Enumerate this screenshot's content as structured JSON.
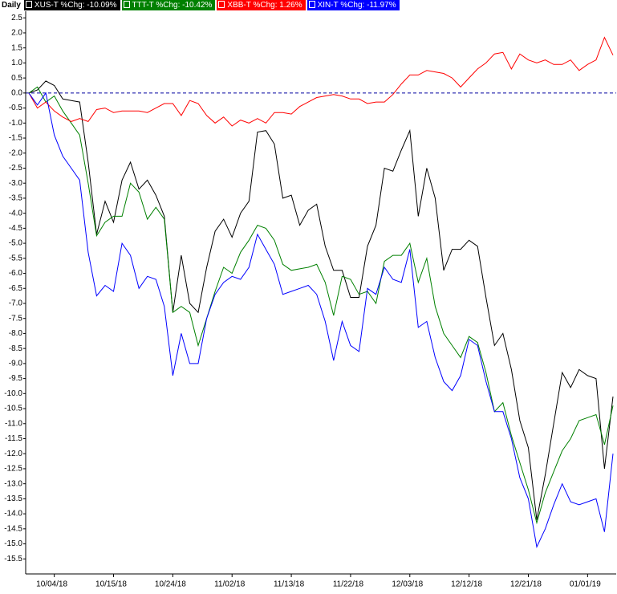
{
  "chart_data": {
    "type": "line",
    "title": "Daily",
    "categories": [
      null,
      null,
      null,
      "10/04/18",
      null,
      null,
      null,
      null,
      null,
      null,
      "10/15/18",
      null,
      null,
      null,
      null,
      null,
      null,
      "10/24/18",
      null,
      null,
      null,
      null,
      null,
      null,
      "11/02/18",
      null,
      null,
      null,
      null,
      null,
      null,
      "11/13/18",
      null,
      null,
      null,
      null,
      null,
      null,
      "11/22/18",
      null,
      null,
      null,
      null,
      null,
      null,
      "12/03/18",
      null,
      null,
      null,
      null,
      null,
      null,
      "12/12/18",
      null,
      null,
      null,
      null,
      null,
      null,
      "12/21/18",
      null,
      null,
      null,
      null,
      null,
      null,
      "01/01/19",
      null,
      null,
      null
    ],
    "series": [
      {
        "name": "XUS-T %Chg: -10.09%",
        "color": "#000000",
        "values": [
          0,
          0.1,
          0.4,
          0.25,
          -0.2,
          -0.25,
          -0.3,
          -2.3,
          -4.7,
          -3.6,
          -4.3,
          -2.9,
          -2.3,
          -3.2,
          -2.9,
          -3.4,
          -4.1,
          -7.3,
          -5.4,
          -7.0,
          -7.3,
          -5.8,
          -4.6,
          -4.2,
          -4.8,
          -4.0,
          -3.6,
          -1.3,
          -1.25,
          -1.7,
          -3.5,
          -3.4,
          -4.4,
          -3.9,
          -3.7,
          -5.1,
          -5.9,
          -5.9,
          -6.8,
          -6.8,
          -5.1,
          -4.4,
          -2.5,
          -2.6,
          -1.9,
          -1.25,
          -4.1,
          -2.5,
          -3.5,
          -5.9,
          -5.2,
          -5.2,
          -4.9,
          -5.1,
          -6.8,
          -8.4,
          -8.0,
          -9.2,
          -10.9,
          -11.8,
          -14.2,
          -12.7,
          -11.0,
          -9.3,
          -9.8,
          -9.2,
          -9.4,
          -9.5,
          -12.5,
          -10.1
        ]
      },
      {
        "name": "TTT-T %Chg: -10.42%",
        "color": "#008000",
        "values": [
          0,
          0.2,
          -0.3,
          -0.1,
          -0.6,
          -1.0,
          -1.4,
          -3.0,
          -4.75,
          -4.3,
          -4.1,
          -4.1,
          -3.0,
          -3.3,
          -4.2,
          -3.8,
          -4.2,
          -7.3,
          -7.1,
          -7.3,
          -8.4,
          -7.5,
          -6.6,
          -5.8,
          -6.0,
          -5.3,
          -4.9,
          -4.4,
          -4.5,
          -4.9,
          -5.7,
          -5.9,
          -5.85,
          -5.8,
          -5.7,
          -6.3,
          -7.4,
          -6.1,
          -6.2,
          -6.7,
          -6.6,
          -7.0,
          -5.6,
          -5.4,
          -5.4,
          -5.0,
          -6.3,
          -5.5,
          -7.1,
          -8.0,
          -8.4,
          -8.8,
          -8.1,
          -8.3,
          -9.3,
          -10.6,
          -10.3,
          -11.4,
          -12.3,
          -13.2,
          -14.3,
          -13.3,
          -12.6,
          -11.9,
          -11.5,
          -10.9,
          -10.8,
          -10.7,
          -11.7,
          -10.4
        ]
      },
      {
        "name": "XBB-T %Chg: 1.26%",
        "color": "#ff0000",
        "values": [
          0,
          -0.5,
          -0.3,
          -0.6,
          -0.8,
          -0.95,
          -0.85,
          -0.95,
          -0.55,
          -0.5,
          -0.65,
          -0.6,
          -0.6,
          -0.6,
          -0.65,
          -0.5,
          -0.35,
          -0.35,
          -0.75,
          -0.25,
          -0.35,
          -0.75,
          -1.0,
          -0.8,
          -1.1,
          -0.9,
          -1.0,
          -0.85,
          -1.0,
          -0.65,
          -0.65,
          -0.7,
          -0.45,
          -0.3,
          -0.15,
          -0.1,
          -0.05,
          -0.1,
          -0.2,
          -0.2,
          -0.35,
          -0.3,
          -0.3,
          -0.05,
          0.3,
          0.6,
          0.6,
          0.75,
          0.7,
          0.65,
          0.5,
          0.2,
          0.5,
          0.8,
          1.0,
          1.3,
          1.35,
          0.8,
          1.3,
          1.1,
          1.0,
          1.1,
          0.95,
          0.95,
          1.1,
          0.75,
          0.95,
          1.1,
          1.85,
          1.26
        ]
      },
      {
        "name": "XIN-T %Chg: -11.97%",
        "color": "#0000ff",
        "values": [
          0,
          -0.4,
          0.0,
          -1.4,
          -2.1,
          -2.5,
          -2.9,
          -5.3,
          -6.75,
          -6.4,
          -6.6,
          -5.0,
          -5.4,
          -6.5,
          -6.1,
          -6.2,
          -7.1,
          -9.4,
          -8.0,
          -9.0,
          -9.0,
          -7.5,
          -6.7,
          -6.3,
          -6.1,
          -6.2,
          -5.8,
          -4.7,
          -5.2,
          -5.7,
          -6.7,
          -6.6,
          -6.5,
          -6.4,
          -6.7,
          -7.6,
          -8.9,
          -7.6,
          -8.4,
          -8.6,
          -6.5,
          -6.7,
          -5.8,
          -6.2,
          -6.3,
          -5.2,
          -7.8,
          -7.6,
          -8.8,
          -9.6,
          -9.9,
          -9.4,
          -8.2,
          -8.4,
          -9.6,
          -10.6,
          -10.6,
          -11.5,
          -12.8,
          -13.5,
          -15.1,
          -14.5,
          -13.7,
          -13.0,
          -13.6,
          -13.7,
          -13.6,
          -13.5,
          -14.6,
          -12.0
        ]
      }
    ],
    "ylim": [
      -16.0,
      2.72
    ],
    "yticks": [
      2.5,
      {
        "value": 2,
        "label": "2.0"
      },
      1.5,
      {
        "value": 1,
        "label": "1.0"
      },
      0.5,
      {
        "value": 0,
        "label": "0.0"
      },
      -0.5,
      {
        "value": -1,
        "label": "-1.0"
      },
      -1.5,
      {
        "value": -2,
        "label": "-2.0"
      },
      -2.5,
      {
        "value": -3,
        "label": "-3.0"
      },
      -3.5,
      {
        "value": -4,
        "label": "-4.0"
      },
      -4.5,
      {
        "value": -5,
        "label": "-5.0"
      },
      -5.5,
      {
        "value": -6,
        "label": "-6.0"
      },
      -6.5,
      {
        "value": -7,
        "label": "-7.0"
      },
      -7.5,
      {
        "value": -8,
        "label": "-8.0"
      },
      -8.5,
      {
        "value": -9,
        "label": "-9.0"
      },
      -9.5,
      {
        "value": -10,
        "label": "-10.0"
      },
      -10.5,
      {
        "value": -11,
        "label": "-11.0"
      },
      -11.5,
      {
        "value": -12,
        "label": "-12.0"
      },
      -12.5,
      {
        "value": -13,
        "label": "-13.0"
      },
      -13.5,
      {
        "value": -14,
        "label": "-14.0"
      },
      -14.5,
      {
        "value": -15,
        "label": "-15.0"
      },
      -15.5
    ],
    "zero_line": true
  }
}
